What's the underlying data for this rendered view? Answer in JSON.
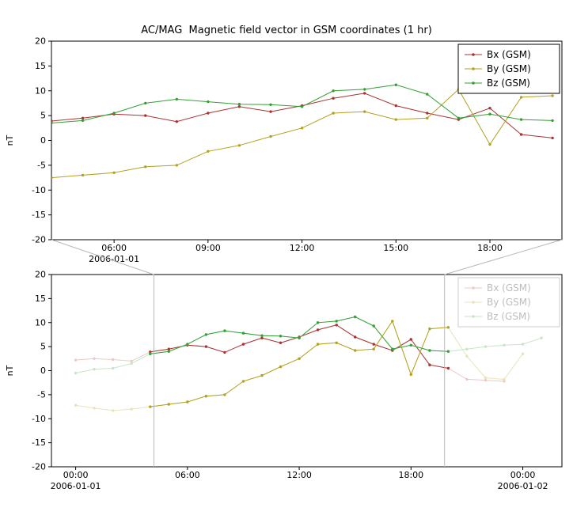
{
  "title": "AC/MAG  Magnetic field vector in GSM coordinates (1 hr)",
  "ylabel": "nT",
  "colors": {
    "bx": "#aa3333",
    "by": "#b3a120",
    "bz": "#32a032",
    "bx_faded": "#ecc9c9",
    "by_faded": "#e9e3bc",
    "bz_faded": "#c6e6c6",
    "window": "#b9b9b9",
    "axis": "#000000",
    "legend_text": "#000000",
    "legend_faded_text": "#bdbdbd",
    "legend_faded_border": "#cccccc"
  },
  "legend_labels": [
    "Bx (GSM)",
    "By (GSM)",
    "Bz (GSM)"
  ],
  "chart_data": [
    {
      "id": "overview",
      "type": "line",
      "title": "AC/MAG  Magnetic field vector in GSM coordinates (1 hr)",
      "xlabel": "",
      "ylabel": "nT",
      "ylim": [
        -20,
        20
      ],
      "yticks": [
        -20,
        -15,
        -10,
        -5,
        0,
        5,
        10,
        15,
        20
      ],
      "xlim": [
        4.0,
        20.3
      ],
      "xticks": [
        {
          "v": 6,
          "label": "06:00"
        },
        {
          "v": 9,
          "label": "09:00"
        },
        {
          "v": 12,
          "label": "12:00"
        },
        {
          "v": 15,
          "label": "15:00"
        },
        {
          "v": 18,
          "label": "18:00"
        }
      ],
      "date_labels": [
        {
          "v": 6,
          "label": "2006-01-01"
        }
      ],
      "grid": false,
      "legend_position": "top-right",
      "legend_faded": false,
      "x": [
        4,
        5,
        6,
        7,
        8,
        9,
        10,
        11,
        12,
        13,
        14,
        15,
        16,
        17,
        18,
        19,
        20
      ],
      "series": [
        {
          "name": "Bx (GSM)",
          "color": "bx",
          "values": [
            3.9,
            4.5,
            5.3,
            5.0,
            3.8,
            5.5,
            6.8,
            5.8,
            7.0,
            8.5,
            9.5,
            7.0,
            5.5,
            4.2,
            6.5,
            1.2,
            0.5
          ]
        },
        {
          "name": "By (GSM)",
          "color": "by",
          "values": [
            -7.5,
            -7.0,
            -6.5,
            -5.3,
            -5.0,
            -2.2,
            -1.0,
            0.8,
            2.5,
            5.5,
            5.8,
            4.2,
            4.5,
            10.3,
            -0.8,
            8.7,
            9.0
          ]
        },
        {
          "name": "Bz (GSM)",
          "color": "bz",
          "values": [
            3.5,
            4.0,
            5.5,
            7.5,
            8.3,
            7.8,
            7.3,
            7.2,
            6.8,
            10.0,
            10.3,
            11.2,
            9.3,
            4.5,
            5.3,
            4.2,
            4.0
          ]
        }
      ]
    },
    {
      "id": "context",
      "type": "line",
      "title": "",
      "xlabel": "",
      "ylabel": "nT",
      "ylim": [
        -20,
        20
      ],
      "yticks": [
        -20,
        -15,
        -10,
        -5,
        0,
        5,
        10,
        15,
        20
      ],
      "xlim": [
        -1.3,
        26.1
      ],
      "xticks": [
        {
          "v": 0,
          "label": "00:00"
        },
        {
          "v": 6,
          "label": "06:00"
        },
        {
          "v": 12,
          "label": "12:00"
        },
        {
          "v": 18,
          "label": "18:00"
        },
        {
          "v": 24,
          "label": "00:00"
        }
      ],
      "date_labels": [
        {
          "v": 0,
          "label": "2006-01-01"
        },
        {
          "v": 24,
          "label": "2006-01-02"
        }
      ],
      "grid": false,
      "legend_position": "top-right",
      "legend_faded": true,
      "window": [
        4.2,
        19.8
      ],
      "highlight_x": [
        4,
        20
      ],
      "x": [
        0,
        1,
        2,
        3,
        4,
        5,
        6,
        7,
        8,
        9,
        10,
        11,
        12,
        13,
        14,
        15,
        16,
        17,
        18,
        19,
        20,
        21,
        22,
        23,
        24,
        25
      ],
      "series": [
        {
          "name": "Bx (GSM)",
          "color": "bx",
          "fade": "bx_faded",
          "values": [
            2.2,
            2.5,
            2.3,
            2.0,
            3.9,
            4.5,
            5.3,
            5.0,
            3.8,
            5.5,
            6.8,
            5.8,
            7.0,
            8.5,
            9.5,
            7.0,
            5.5,
            4.2,
            6.5,
            1.2,
            0.5,
            -1.8,
            -2.0,
            -2.2,
            null,
            null
          ]
        },
        {
          "name": "By (GSM)",
          "color": "by",
          "fade": "by_faded",
          "values": [
            -7.2,
            -7.8,
            -8.3,
            -8.0,
            -7.5,
            -7.0,
            -6.5,
            -5.3,
            -5.0,
            -2.2,
            -1.0,
            0.8,
            2.5,
            5.5,
            5.8,
            4.2,
            4.5,
            10.3,
            -0.8,
            8.7,
            9.0,
            3.0,
            -1.5,
            -1.8,
            3.5,
            null
          ]
        },
        {
          "name": "Bz (GSM)",
          "color": "bz",
          "fade": "bz_faded",
          "values": [
            -0.5,
            0.3,
            0.5,
            1.5,
            3.5,
            4.0,
            5.5,
            7.5,
            8.3,
            7.8,
            7.3,
            7.2,
            6.8,
            10.0,
            10.3,
            11.2,
            9.3,
            4.5,
            5.3,
            4.2,
            4.0,
            4.5,
            5.0,
            5.3,
            5.5,
            6.8
          ]
        }
      ]
    }
  ]
}
